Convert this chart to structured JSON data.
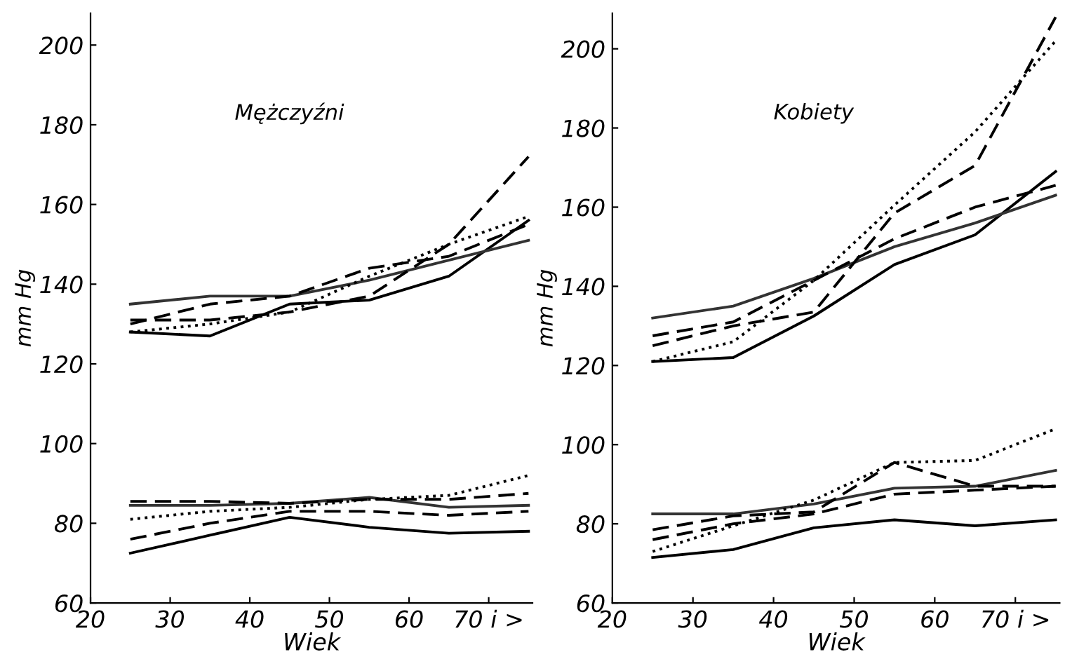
{
  "chart_data": [
    {
      "type": "line",
      "title": "Mężczyźni",
      "xlabel": "Wiek",
      "ylabel": "mm Hg",
      "x": [
        25,
        35,
        45,
        55,
        65,
        75
      ],
      "xlim": [
        20,
        75.5
      ],
      "xticks": [
        20,
        30,
        40,
        50,
        60,
        {
          "value": 70,
          "label": "70 i >"
        }
      ],
      "ylim": [
        60,
        208
      ],
      "yticks": [
        60,
        80,
        100,
        120,
        140,
        160,
        180,
        200
      ],
      "grid": false,
      "legend": false,
      "marker": "none",
      "series": [
        {
          "color": "#000000",
          "line_style": "solid",
          "values": [
            128,
            127,
            135,
            136,
            142,
            156
          ]
        },
        {
          "color": "#333333",
          "line_style": "solid",
          "values": [
            135,
            137,
            137,
            141,
            146,
            151
          ]
        },
        {
          "color": "#000000",
          "line_style": "dashed",
          "values": [
            130,
            135,
            137,
            144,
            147,
            155
          ]
        },
        {
          "color": "#000000",
          "line_style": "dashed",
          "values": [
            131,
            131,
            133,
            137,
            150,
            172
          ]
        },
        {
          "color": "#000000",
          "line_style": "dotted",
          "values": [
            128,
            130,
            133,
            142,
            150,
            157
          ]
        },
        {
          "color": "#000000",
          "line_style": "solid",
          "values": [
            72.5,
            77,
            81.5,
            79,
            77.5,
            78
          ]
        },
        {
          "color": "#333333",
          "line_style": "solid",
          "values": [
            84.5,
            84.5,
            85,
            86.5,
            84,
            84.5
          ]
        },
        {
          "color": "#000000",
          "line_style": "dashed",
          "values": [
            76,
            80,
            83,
            83,
            82,
            83
          ]
        },
        {
          "color": "#000000",
          "line_style": "dashed",
          "values": [
            85.5,
            85.5,
            85,
            86,
            86,
            87.5
          ]
        },
        {
          "color": "#000000",
          "line_style": "dotted",
          "values": [
            81,
            83,
            84,
            86,
            87,
            92
          ]
        }
      ]
    },
    {
      "type": "line",
      "title": "Kobiety",
      "xlabel": "Wiek",
      "ylabel": "mm Hg",
      "x": [
        25,
        35,
        45,
        55,
        65,
        75
      ],
      "xlim": [
        20,
        75.5
      ],
      "xticks": [
        20,
        30,
        40,
        50,
        60,
        {
          "value": 70,
          "label": "70 i >"
        }
      ],
      "ylim": [
        60,
        209
      ],
      "yticks": [
        60,
        80,
        100,
        120,
        140,
        160,
        180,
        200
      ],
      "grid": false,
      "legend": false,
      "marker": "none",
      "series": [
        {
          "color": "#000000",
          "line_style": "solid",
          "values": [
            121,
            122,
            132.5,
            145.5,
            153,
            169
          ]
        },
        {
          "color": "#333333",
          "line_style": "solid",
          "values": [
            132,
            135,
            142,
            150,
            156,
            163
          ]
        },
        {
          "color": "#000000",
          "line_style": "dashed",
          "values": [
            127.5,
            131,
            141.5,
            152,
            160,
            165.5
          ]
        },
        {
          "color": "#000000",
          "line_style": "dashed",
          "values": [
            125,
            130,
            133.5,
            158.5,
            170.5,
            208
          ]
        },
        {
          "color": "#000000",
          "line_style": "dotted",
          "values": [
            121,
            126,
            141.5,
            160.5,
            179,
            202
          ]
        },
        {
          "color": "#000000",
          "line_style": "solid",
          "values": [
            71.5,
            73.5,
            79,
            81,
            79.5,
            81
          ]
        },
        {
          "color": "#333333",
          "line_style": "solid",
          "values": [
            82.5,
            82.5,
            85,
            89,
            89.5,
            93.5
          ]
        },
        {
          "color": "#000000",
          "line_style": "dashed",
          "values": [
            76,
            80,
            82.5,
            87.5,
            88.5,
            89.5
          ]
        },
        {
          "color": "#000000",
          "line_style": "dashed",
          "values": [
            78.5,
            82,
            83,
            95.5,
            89.5,
            89.5
          ]
        },
        {
          "color": "#000000",
          "line_style": "dotted",
          "values": [
            73,
            79.5,
            86,
            95.5,
            96,
            104
          ]
        }
      ]
    }
  ]
}
